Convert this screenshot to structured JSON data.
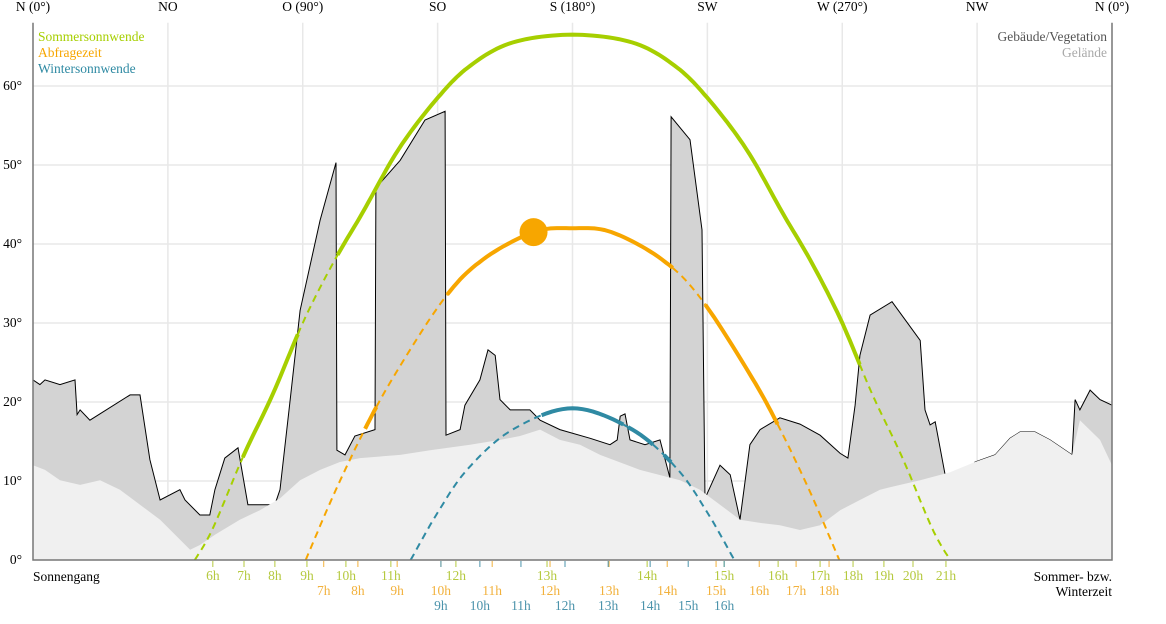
{
  "chart_data": {
    "type": "line",
    "title": "",
    "xlabel": "",
    "ylabel": "",
    "xlim": [
      0,
      360
    ],
    "ylim": [
      0,
      68
    ],
    "grid": true,
    "compass_labels": [
      {
        "label": "N (0°)",
        "az": 0
      },
      {
        "label": "NO",
        "az": 45
      },
      {
        "label": "O (90°)",
        "az": 90
      },
      {
        "label": "SO",
        "az": 135
      },
      {
        "label": "S (180°)",
        "az": 180
      },
      {
        "label": "SW",
        "az": 225
      },
      {
        "label": "W (270°)",
        "az": 270
      },
      {
        "label": "NW",
        "az": 315
      },
      {
        "label": "N (0°)",
        "az": 360
      }
    ],
    "y_ticks": [
      {
        "label": "0°",
        "v": 0
      },
      {
        "label": "10°",
        "v": 10
      },
      {
        "label": "20°",
        "v": 20
      },
      {
        "label": "30°",
        "v": 30
      },
      {
        "label": "40°",
        "v": 40
      },
      {
        "label": "50°",
        "v": 50
      },
      {
        "label": "60°",
        "v": 60
      }
    ],
    "legend_left": [
      {
        "label": "Sommersonnwende",
        "color": "#a6cf00"
      },
      {
        "label": "Abfragezeit",
        "color": "#f7a600"
      },
      {
        "label": "Wintersonnwende",
        "color": "#2f8aa3"
      }
    ],
    "legend_right": [
      {
        "label": "Gebäude/Vegetation",
        "color": "#555555"
      },
      {
        "label": "Gelände",
        "color": "#aaaaaa"
      }
    ],
    "bottom_left_label": "Sonnengang",
    "bottom_right_label": [
      "Sommer- bzw.",
      "Winterzeit"
    ],
    "colors": {
      "obstacle_fill": "#d3d3d3",
      "terrain_fill": "#f0f0f0",
      "grid": "#e8e8e8"
    },
    "series": [
      {
        "name": "Sommersonnwende",
        "color": "#a6cf00",
        "label_color": "#b5c93f",
        "points": [
          [
            54,
            0
          ],
          [
            60,
            4
          ],
          [
            70,
            13
          ],
          [
            80,
            21
          ],
          [
            90,
            30
          ],
          [
            100,
            37.5
          ],
          [
            110,
            44
          ],
          [
            122,
            52
          ],
          [
            135,
            58.5
          ],
          [
            146,
            62.6
          ],
          [
            160,
            65.5
          ],
          [
            180,
            66.5
          ],
          [
            200,
            65.5
          ],
          [
            214,
            62.6
          ],
          [
            225,
            58.5
          ],
          [
            238,
            52
          ],
          [
            250,
            44
          ],
          [
            260,
            37.5
          ],
          [
            270,
            30
          ],
          [
            280,
            21
          ],
          [
            290,
            13
          ],
          [
            300,
            4
          ],
          [
            306,
            0
          ]
        ],
        "hours": [
          {
            "label": "6h",
            "az": 60
          },
          {
            "label": "7h",
            "az": 70.4
          },
          {
            "label": "8h",
            "az": 80.7
          },
          {
            "label": "9h",
            "az": 91.4
          },
          {
            "label": "10h",
            "az": 104.4
          },
          {
            "label": "11h",
            "az": 119.4
          },
          {
            "label": "12h",
            "az": 141.1
          },
          {
            "label": "13h",
            "az": 171.5
          },
          {
            "label": "14h",
            "az": 204.9
          },
          {
            "label": "15h",
            "az": 230.6
          },
          {
            "label": "16h",
            "az": 248.6
          },
          {
            "label": "17h",
            "az": 262.6
          },
          {
            "label": "18h",
            "az": 273.6
          },
          {
            "label": "19h",
            "az": 283.9
          },
          {
            "label": "20h",
            "az": 293.6
          },
          {
            "label": "21h",
            "az": 304.6
          }
        ]
      },
      {
        "name": "Abfragezeit",
        "color": "#f7a600",
        "label_color": "#f2b13c",
        "points": [
          [
            91,
            0
          ],
          [
            100,
            8
          ],
          [
            110,
            16
          ],
          [
            120,
            23
          ],
          [
            137,
            33
          ],
          [
            150,
            38
          ],
          [
            167,
            41.5
          ],
          [
            180,
            42
          ],
          [
            193,
            41.5
          ],
          [
            210,
            38
          ],
          [
            223,
            33
          ],
          [
            240,
            23
          ],
          [
            250,
            16
          ],
          [
            260,
            8
          ],
          [
            269,
            0
          ]
        ],
        "hours": [
          {
            "label": "7h",
            "az": 97
          },
          {
            "label": "8h",
            "az": 108.4
          },
          {
            "label": "9h",
            "az": 121.5
          },
          {
            "label": "10h",
            "az": 136.1
          },
          {
            "label": "11h",
            "az": 153.2
          },
          {
            "label": "12h",
            "az": 172.5
          },
          {
            "label": "13h",
            "az": 192.2
          },
          {
            "label": "14h",
            "az": 211.6
          },
          {
            "label": "15h",
            "az": 227.9
          },
          {
            "label": "16h",
            "az": 242.3
          },
          {
            "label": "17h",
            "az": 254.6
          },
          {
            "label": "18h",
            "az": 265.6
          }
        ]
      },
      {
        "name": "Wintersonnwende",
        "color": "#2f8aa3",
        "label_color": "#4b93ab",
        "points": [
          [
            126,
            0
          ],
          [
            135,
            6
          ],
          [
            145,
            11.5
          ],
          [
            160,
            16.5
          ],
          [
            180,
            19.2
          ],
          [
            200,
            16.5
          ],
          [
            215,
            11.5
          ],
          [
            225,
            6
          ],
          [
            234,
            0
          ]
        ],
        "hours": [
          {
            "label": "9h",
            "az": 136.1
          },
          {
            "label": "10h",
            "az": 149.1
          },
          {
            "label": "11h",
            "az": 162.8
          },
          {
            "label": "12h",
            "az": 177.5
          },
          {
            "label": "13h",
            "az": 191.9
          },
          {
            "label": "14h",
            "az": 205.9
          },
          {
            "label": "15h",
            "az": 218.6
          },
          {
            "label": "16h",
            "az": 230.6
          }
        ]
      }
    ],
    "current_sun": {
      "az": 167,
      "alt": 41.5,
      "color": "#f7a600"
    },
    "obstacle_horizon": [
      [
        0,
        22.8
      ],
      [
        2.3,
        22.2
      ],
      [
        4,
        22.8
      ],
      [
        9,
        22.2
      ],
      [
        14,
        22.8
      ],
      [
        14.7,
        18.4
      ],
      [
        15.7,
        19
      ],
      [
        19,
        17.7
      ],
      [
        32.4,
        20.9
      ],
      [
        35.7,
        20.9
      ],
      [
        39,
        12.7
      ],
      [
        42.4,
        7.6
      ],
      [
        49,
        8.9
      ],
      [
        50.7,
        7.6
      ],
      [
        55.7,
        5.7
      ],
      [
        59,
        5.7
      ],
      [
        60.7,
        8.9
      ],
      [
        64,
        12.9
      ],
      [
        68.4,
        14.2
      ],
      [
        71.7,
        7
      ],
      [
        80.7,
        7
      ],
      [
        82.4,
        8.9
      ],
      [
        85.8,
        20.3
      ],
      [
        89.1,
        31.6
      ],
      [
        95.8,
        43
      ],
      [
        101.1,
        50.3
      ],
      [
        101.4,
        13.9
      ],
      [
        104.1,
        13.3
      ],
      [
        107.4,
        15.7
      ],
      [
        114.1,
        16.5
      ],
      [
        114.4,
        47.1
      ],
      [
        122.5,
        50.6
      ],
      [
        130.8,
        55.7
      ],
      [
        137.5,
        56.8
      ],
      [
        137.8,
        15.8
      ],
      [
        142.5,
        16.5
      ],
      [
        144.1,
        19.6
      ],
      [
        149.1,
        22.8
      ],
      [
        151.8,
        26.6
      ],
      [
        154.2,
        25.9
      ],
      [
        155.8,
        20.3
      ],
      [
        159.2,
        19
      ],
      [
        165.8,
        19
      ],
      [
        169.2,
        17.7
      ],
      [
        175.8,
        16.5
      ],
      [
        185.9,
        15.4
      ],
      [
        192.5,
        14.6
      ],
      [
        194.9,
        15.2
      ],
      [
        195.9,
        18.2
      ],
      [
        197.5,
        18.5
      ],
      [
        199.2,
        15.2
      ],
      [
        204.2,
        14.6
      ],
      [
        209.2,
        15.2
      ],
      [
        212.5,
        10.4
      ],
      [
        212.9,
        56.1
      ],
      [
        219.2,
        53.2
      ],
      [
        223.2,
        41.8
      ],
      [
        224.2,
        7.8
      ],
      [
        229.2,
        12
      ],
      [
        232.6,
        10.8
      ],
      [
        235.9,
        5.1
      ],
      [
        239.2,
        14.6
      ],
      [
        242.6,
        16.5
      ],
      [
        249.2,
        18
      ],
      [
        255.9,
        17.2
      ],
      [
        262.6,
        15.8
      ],
      [
        269.3,
        13.5
      ],
      [
        271.9,
        12.9
      ],
      [
        274.3,
        19.6
      ],
      [
        275.9,
        25.9
      ],
      [
        279.3,
        31
      ],
      [
        286.6,
        32.7
      ],
      [
        291,
        30.4
      ],
      [
        296,
        27.8
      ],
      [
        297.6,
        19
      ],
      [
        299.3,
        17.1
      ],
      [
        301,
        17.5
      ],
      [
        304.3,
        10.8
      ],
      [
        309.3,
        9.9
      ],
      [
        314.3,
        12.4
      ],
      [
        321,
        13.3
      ],
      [
        326,
        15.4
      ],
      [
        329.3,
        16.2
      ],
      [
        334.3,
        16.2
      ],
      [
        339.3,
        15.2
      ],
      [
        346.7,
        13.3
      ],
      [
        347.7,
        20.3
      ],
      [
        349.3,
        19
      ],
      [
        352.7,
        21.5
      ],
      [
        356,
        20.3
      ],
      [
        360,
        19.6
      ]
    ],
    "terrain_horizon": [
      [
        0,
        12
      ],
      [
        4,
        11.4
      ],
      [
        9,
        10.1
      ],
      [
        15.7,
        9.5
      ],
      [
        22.4,
        10.1
      ],
      [
        29,
        8.9
      ],
      [
        35.7,
        7
      ],
      [
        42.4,
        5.1
      ],
      [
        47.4,
        3.2
      ],
      [
        52.4,
        1.3
      ],
      [
        55.7,
        1.9
      ],
      [
        60.7,
        3.2
      ],
      [
        69,
        5.1
      ],
      [
        75.7,
        6.3
      ],
      [
        82.4,
        7.8
      ],
      [
        89.1,
        10.1
      ],
      [
        95.8,
        11.4
      ],
      [
        102.4,
        12.4
      ],
      [
        109.1,
        12.9
      ],
      [
        122.5,
        13.3
      ],
      [
        132.5,
        13.9
      ],
      [
        145.8,
        14.6
      ],
      [
        155.8,
        15.2
      ],
      [
        162.5,
        15.7
      ],
      [
        169.2,
        16.5
      ],
      [
        175.8,
        15.2
      ],
      [
        182.5,
        14.6
      ],
      [
        189.2,
        13.3
      ],
      [
        202.5,
        11.4
      ],
      [
        215.9,
        10.1
      ],
      [
        222.5,
        8.9
      ],
      [
        229.2,
        7
      ],
      [
        235.9,
        5.1
      ],
      [
        242.6,
        4.7
      ],
      [
        249.2,
        4.4
      ],
      [
        255.9,
        3.8
      ],
      [
        262.6,
        4.4
      ],
      [
        269.3,
        6.3
      ],
      [
        275.9,
        7.6
      ],
      [
        282.6,
        8.9
      ],
      [
        289.3,
        9.5
      ],
      [
        296,
        10.1
      ],
      [
        306,
        11.1
      ],
      [
        314.3,
        12.4
      ],
      [
        321,
        13.3
      ],
      [
        326,
        15.4
      ],
      [
        329.3,
        16.2
      ],
      [
        334.3,
        16.2
      ],
      [
        339.3,
        15.2
      ],
      [
        346.7,
        13.3
      ],
      [
        349.3,
        17.7
      ],
      [
        356,
        15.2
      ],
      [
        360,
        12
      ]
    ]
  }
}
